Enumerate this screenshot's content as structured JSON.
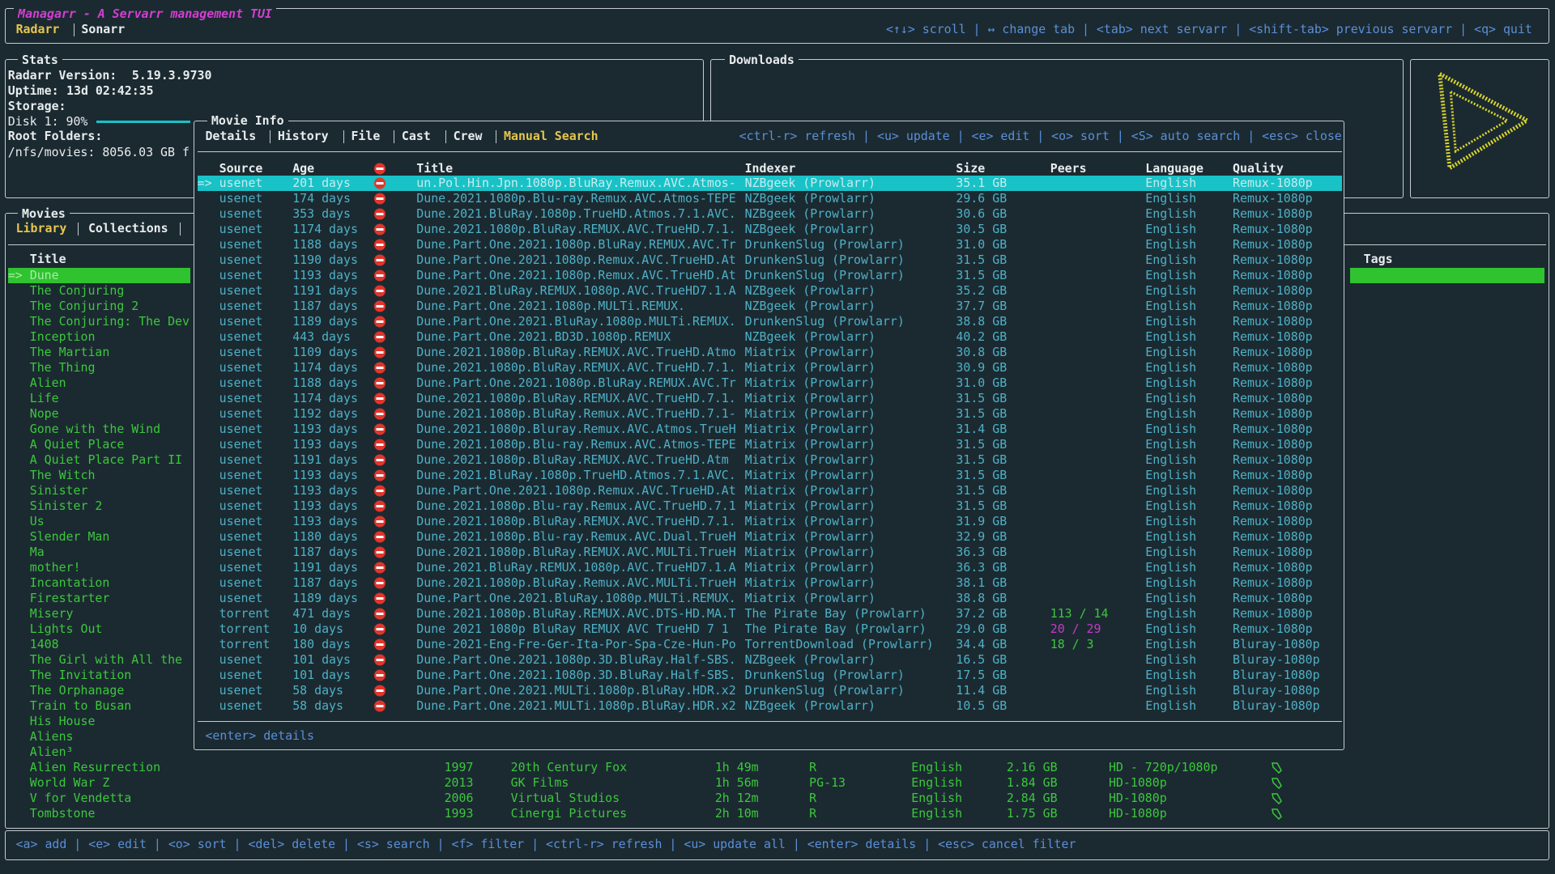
{
  "header": {
    "title": "Managarr - A Servarr management TUI",
    "tabs": [
      "Radarr",
      "Sonarr"
    ],
    "help": "<↑↓> scroll | ↔ change tab | <tab> next servarr | <shift-tab> previous servarr | <q> quit"
  },
  "stats": {
    "title": "Stats",
    "version_label": "Radarr Version:",
    "version": "5.19.3.9730",
    "uptime_label": "Uptime:",
    "uptime": "13d 02:42:35",
    "storage_label": "Storage:",
    "disk": "Disk 1: 90%",
    "root_folders_label": "Root Folders:",
    "root_folder": "/nfs/movies: 8056.03 GB f"
  },
  "downloads": {
    "title": "Downloads"
  },
  "movies": {
    "title": "Movies",
    "tabs": [
      "Library",
      "Collections"
    ],
    "columns": [
      "Title",
      "Tags"
    ],
    "selection_marker": "=>",
    "rows": [
      [
        "Dune"
      ],
      [
        "The Conjuring"
      ],
      [
        "The Conjuring 2"
      ],
      [
        "The Conjuring: The Dev"
      ],
      [
        "Inception"
      ],
      [
        "The Martian"
      ],
      [
        "The Thing"
      ],
      [
        "Alien"
      ],
      [
        "Life"
      ],
      [
        "Nope"
      ],
      [
        "Gone with the Wind"
      ],
      [
        "A Quiet Place"
      ],
      [
        "A Quiet Place Part II"
      ],
      [
        "The Witch"
      ],
      [
        "Sinister"
      ],
      [
        "Sinister 2"
      ],
      [
        "Us"
      ],
      [
        "Slender Man"
      ],
      [
        "Ma"
      ],
      [
        "mother!"
      ],
      [
        "Incantation"
      ],
      [
        "Firestarter"
      ],
      [
        "Misery"
      ],
      [
        "Lights Out"
      ],
      [
        "1408"
      ],
      [
        "The Girl with All the"
      ],
      [
        "The Invitation"
      ],
      [
        "The Orphanage"
      ],
      [
        "Train to Busan"
      ],
      [
        "His House"
      ],
      [
        "Aliens"
      ],
      [
        "Alien³"
      ],
      [
        "Alien Resurrection",
        "1997",
        "20th Century Fox",
        "1h 49m",
        "R",
        "English",
        "2.16 GB",
        "HD - 720p/1080p"
      ],
      [
        "World War Z",
        "2013",
        "GK Films",
        "1h 56m",
        "PG-13",
        "English",
        "1.84 GB",
        "HD-1080p"
      ],
      [
        "V for Vendetta",
        "2006",
        "Virtual Studios",
        "2h 12m",
        "R",
        "English",
        "2.84 GB",
        "HD-1080p"
      ],
      [
        "Tombstone",
        "1993",
        "Cinergi Pictures",
        "2h 10m",
        "R",
        "English",
        "1.75 GB",
        "HD-1080p"
      ]
    ]
  },
  "movie_info": {
    "title": "Movie Info",
    "tabs": [
      "Details",
      "History",
      "File",
      "Cast",
      "Crew",
      "Manual Search"
    ],
    "help": "<ctrl-r> refresh | <u> update | <e> edit | <o> sort | <S> auto search | <esc> close",
    "columns": [
      "Source",
      "Age",
      "Title",
      "Indexer",
      "Size",
      "Peers",
      "Language",
      "Quality"
    ],
    "selection_marker": "=>",
    "rows": [
      [
        "usenet",
        "201 days",
        "un.Pol.Hin.Jpn.1080p.BluRay.Remux.AVC.Atmos-",
        "NZBgeek (Prowlarr)",
        "35.1 GB",
        null,
        "English",
        "Remux-1080p"
      ],
      [
        "usenet",
        "174 days",
        "Dune.2021.1080p.Blu-ray.Remux.AVC.Atmos-TEPE",
        "NZBgeek (Prowlarr)",
        "29.6 GB",
        null,
        "English",
        "Remux-1080p"
      ],
      [
        "usenet",
        "353 days",
        "Dune.2021.BluRay.1080p.TrueHD.Atmos.7.1.AVC.",
        "NZBgeek (Prowlarr)",
        "30.6 GB",
        null,
        "English",
        "Remux-1080p"
      ],
      [
        "usenet",
        "1174 days",
        "Dune.2021.1080p.BluRay.REMUX.AVC.TrueHD.7.1.",
        "NZBgeek (Prowlarr)",
        "30.5 GB",
        null,
        "English",
        "Remux-1080p"
      ],
      [
        "usenet",
        "1188 days",
        "Dune.Part.One.2021.1080p.BluRay.REMUX.AVC.Tr",
        "DrunkenSlug (Prowlarr)",
        "31.0 GB",
        null,
        "English",
        "Remux-1080p"
      ],
      [
        "usenet",
        "1190 days",
        "Dune.Part.One.2021.1080p.Remux.AVC.TrueHD.At",
        "DrunkenSlug (Prowlarr)",
        "31.5 GB",
        null,
        "English",
        "Remux-1080p"
      ],
      [
        "usenet",
        "1193 days",
        "Dune.Part.One.2021.1080p.Remux.AVC.TrueHD.At",
        "DrunkenSlug (Prowlarr)",
        "31.5 GB",
        null,
        "English",
        "Remux-1080p"
      ],
      [
        "usenet",
        "1191 days",
        "Dune.2021.BluRay.REMUX.1080p.AVC.TrueHD7.1.A",
        "NZBgeek (Prowlarr)",
        "35.2 GB",
        null,
        "English",
        "Remux-1080p"
      ],
      [
        "usenet",
        "1187 days",
        "Dune.Part.One.2021.1080p.MULTi.REMUX.",
        "NZBgeek (Prowlarr)",
        "37.7 GB",
        null,
        "English",
        "Remux-1080p"
      ],
      [
        "usenet",
        "1189 days",
        "Dune.Part.One.2021.BluRay.1080p.MULTi.REMUX.",
        "DrunkenSlug (Prowlarr)",
        "38.8 GB",
        null,
        "English",
        "Remux-1080p"
      ],
      [
        "usenet",
        "443 days",
        "Dune.Part.One.2021.BD3D.1080p.REMUX",
        "NZBgeek (Prowlarr)",
        "40.2 GB",
        null,
        "English",
        "Remux-1080p"
      ],
      [
        "usenet",
        "1109 days",
        "Dune.2021.1080p.BluRay.REMUX.AVC.TrueHD.Atmo",
        "Miatrix (Prowlarr)",
        "30.8 GB",
        null,
        "English",
        "Remux-1080p"
      ],
      [
        "usenet",
        "1174 days",
        "Dune.2021.1080p.BluRay.REMUX.AVC.TrueHD.7.1.",
        "Miatrix (Prowlarr)",
        "30.9 GB",
        null,
        "English",
        "Remux-1080p"
      ],
      [
        "usenet",
        "1188 days",
        "Dune.Part.One.2021.1080p.BluRay.REMUX.AVC.Tr",
        "Miatrix (Prowlarr)",
        "31.0 GB",
        null,
        "English",
        "Remux-1080p"
      ],
      [
        "usenet",
        "1174 days",
        "Dune.2021.1080p.BluRay.REMUX.AVC.TrueHD.7.1.",
        "Miatrix (Prowlarr)",
        "31.5 GB",
        null,
        "English",
        "Remux-1080p"
      ],
      [
        "usenet",
        "1192 days",
        "Dune.2021.1080p.BluRay.Remux.AVC.TrueHD.7.1-",
        "Miatrix (Prowlarr)",
        "31.5 GB",
        null,
        "English",
        "Remux-1080p"
      ],
      [
        "usenet",
        "1193 days",
        "Dune.2021.1080p.Bluray.Remux.AVC.Atmos.TrueH",
        "Miatrix (Prowlarr)",
        "31.4 GB",
        null,
        "English",
        "Remux-1080p"
      ],
      [
        "usenet",
        "1193 days",
        "Dune.2021.1080p.Blu-ray.Remux.AVC.Atmos-TEPE",
        "Miatrix (Prowlarr)",
        "31.5 GB",
        null,
        "English",
        "Remux-1080p"
      ],
      [
        "usenet",
        "1191 days",
        "Dune.2021.1080p.BluRay.REMUX.AVC.TrueHD.Atm",
        "Miatrix (Prowlarr)",
        "31.5 GB",
        null,
        "English",
        "Remux-1080p"
      ],
      [
        "usenet",
        "1193 days",
        "Dune.2021.BluRay.1080p.TrueHD.Atmos.7.1.AVC.",
        "Miatrix (Prowlarr)",
        "31.5 GB",
        null,
        "English",
        "Remux-1080p"
      ],
      [
        "usenet",
        "1193 days",
        "Dune.Part.One.2021.1080p.Remux.AVC.TrueHD.At",
        "Miatrix (Prowlarr)",
        "31.5 GB",
        null,
        "English",
        "Remux-1080p"
      ],
      [
        "usenet",
        "1193 days",
        "Dune.2021.1080p.Blu-ray.Remux.AVC.TrueHD.7.1",
        "Miatrix (Prowlarr)",
        "31.5 GB",
        null,
        "English",
        "Remux-1080p"
      ],
      [
        "usenet",
        "1193 days",
        "Dune.2021.1080p.BluRay.REMUX.AVC.TrueHD.7.1.",
        "Miatrix (Prowlarr)",
        "31.9 GB",
        null,
        "English",
        "Remux-1080p"
      ],
      [
        "usenet",
        "1180 days",
        "Dune.2021.1080p.Blu-ray.Remux.AVC.Dual.TrueH",
        "Miatrix (Prowlarr)",
        "32.9 GB",
        null,
        "English",
        "Remux-1080p"
      ],
      [
        "usenet",
        "1187 days",
        "Dune.2021.1080p.BluRay.REMUX.AVC.MULTi.TrueH",
        "Miatrix (Prowlarr)",
        "36.3 GB",
        null,
        "English",
        "Remux-1080p"
      ],
      [
        "usenet",
        "1191 days",
        "Dune.2021.BluRay.REMUX.1080p.AVC.TrueHD7.1.A",
        "Miatrix (Prowlarr)",
        "36.3 GB",
        null,
        "English",
        "Remux-1080p"
      ],
      [
        "usenet",
        "1187 days",
        "Dune.2021.1080p.BluRay.Remux.AVC.MULTi.TrueH",
        "Miatrix (Prowlarr)",
        "38.1 GB",
        null,
        "English",
        "Remux-1080p"
      ],
      [
        "usenet",
        "1189 days",
        "Dune.Part.One.2021.BluRay.1080p.MULTi.REMUX.",
        "Miatrix (Prowlarr)",
        "38.8 GB",
        null,
        "English",
        "Remux-1080p"
      ],
      [
        "torrent",
        "471 days",
        "Dune.2021.1080p.BluRay.REMUX.AVC.DTS-HD.MA.T",
        "The Pirate Bay (Prowlarr)",
        "37.2 GB",
        "113 / 14",
        "English",
        "Remux-1080p"
      ],
      [
        "torrent",
        "10 days",
        "Dune 2021 1080p BluRay REMUX AVC TrueHD 7 1",
        "The Pirate Bay (Prowlarr)",
        "29.0 GB",
        "20 / 29",
        "English",
        "Remux-1080p"
      ],
      [
        "torrent",
        "180 days",
        "Dune-2021-Eng-Fre-Ger-Ita-Por-Spa-Cze-Hun-Po",
        "TorrentDownload (Prowlarr)",
        "34.4 GB",
        "18 / 3",
        "English",
        "Bluray-1080p"
      ],
      [
        "usenet",
        "101 days",
        "Dune.Part.One.2021.1080p.3D.BluRay.Half-SBS.",
        "NZBgeek (Prowlarr)",
        "16.5 GB",
        null,
        "English",
        "Bluray-1080p"
      ],
      [
        "usenet",
        "101 days",
        "Dune.Part.One.2021.1080p.3D.BluRay.Half-SBS.",
        "DrunkenSlug (Prowlarr)",
        "17.5 GB",
        null,
        "English",
        "Bluray-1080p"
      ],
      [
        "usenet",
        "58 days",
        "Dune.Part.One.2021.MULTi.1080p.BluRay.HDR.x2",
        "DrunkenSlug (Prowlarr)",
        "11.4 GB",
        null,
        "English",
        "Bluray-1080p"
      ],
      [
        "usenet",
        "58 days",
        "Dune.Part.One.2021.MULTi.1080p.BluRay.HDR.x2",
        "NZBgeek (Prowlarr)",
        "10.5 GB",
        null,
        "English",
        "Bluray-1080p"
      ]
    ],
    "footer": "<enter> details"
  },
  "footer": {
    "help": "<a> add | <e> edit | <o> sort | <del> delete | <s> search | <f> filter | <ctrl-r> refresh | <u> update all | <enter> details | <esc> cancel filter"
  }
}
